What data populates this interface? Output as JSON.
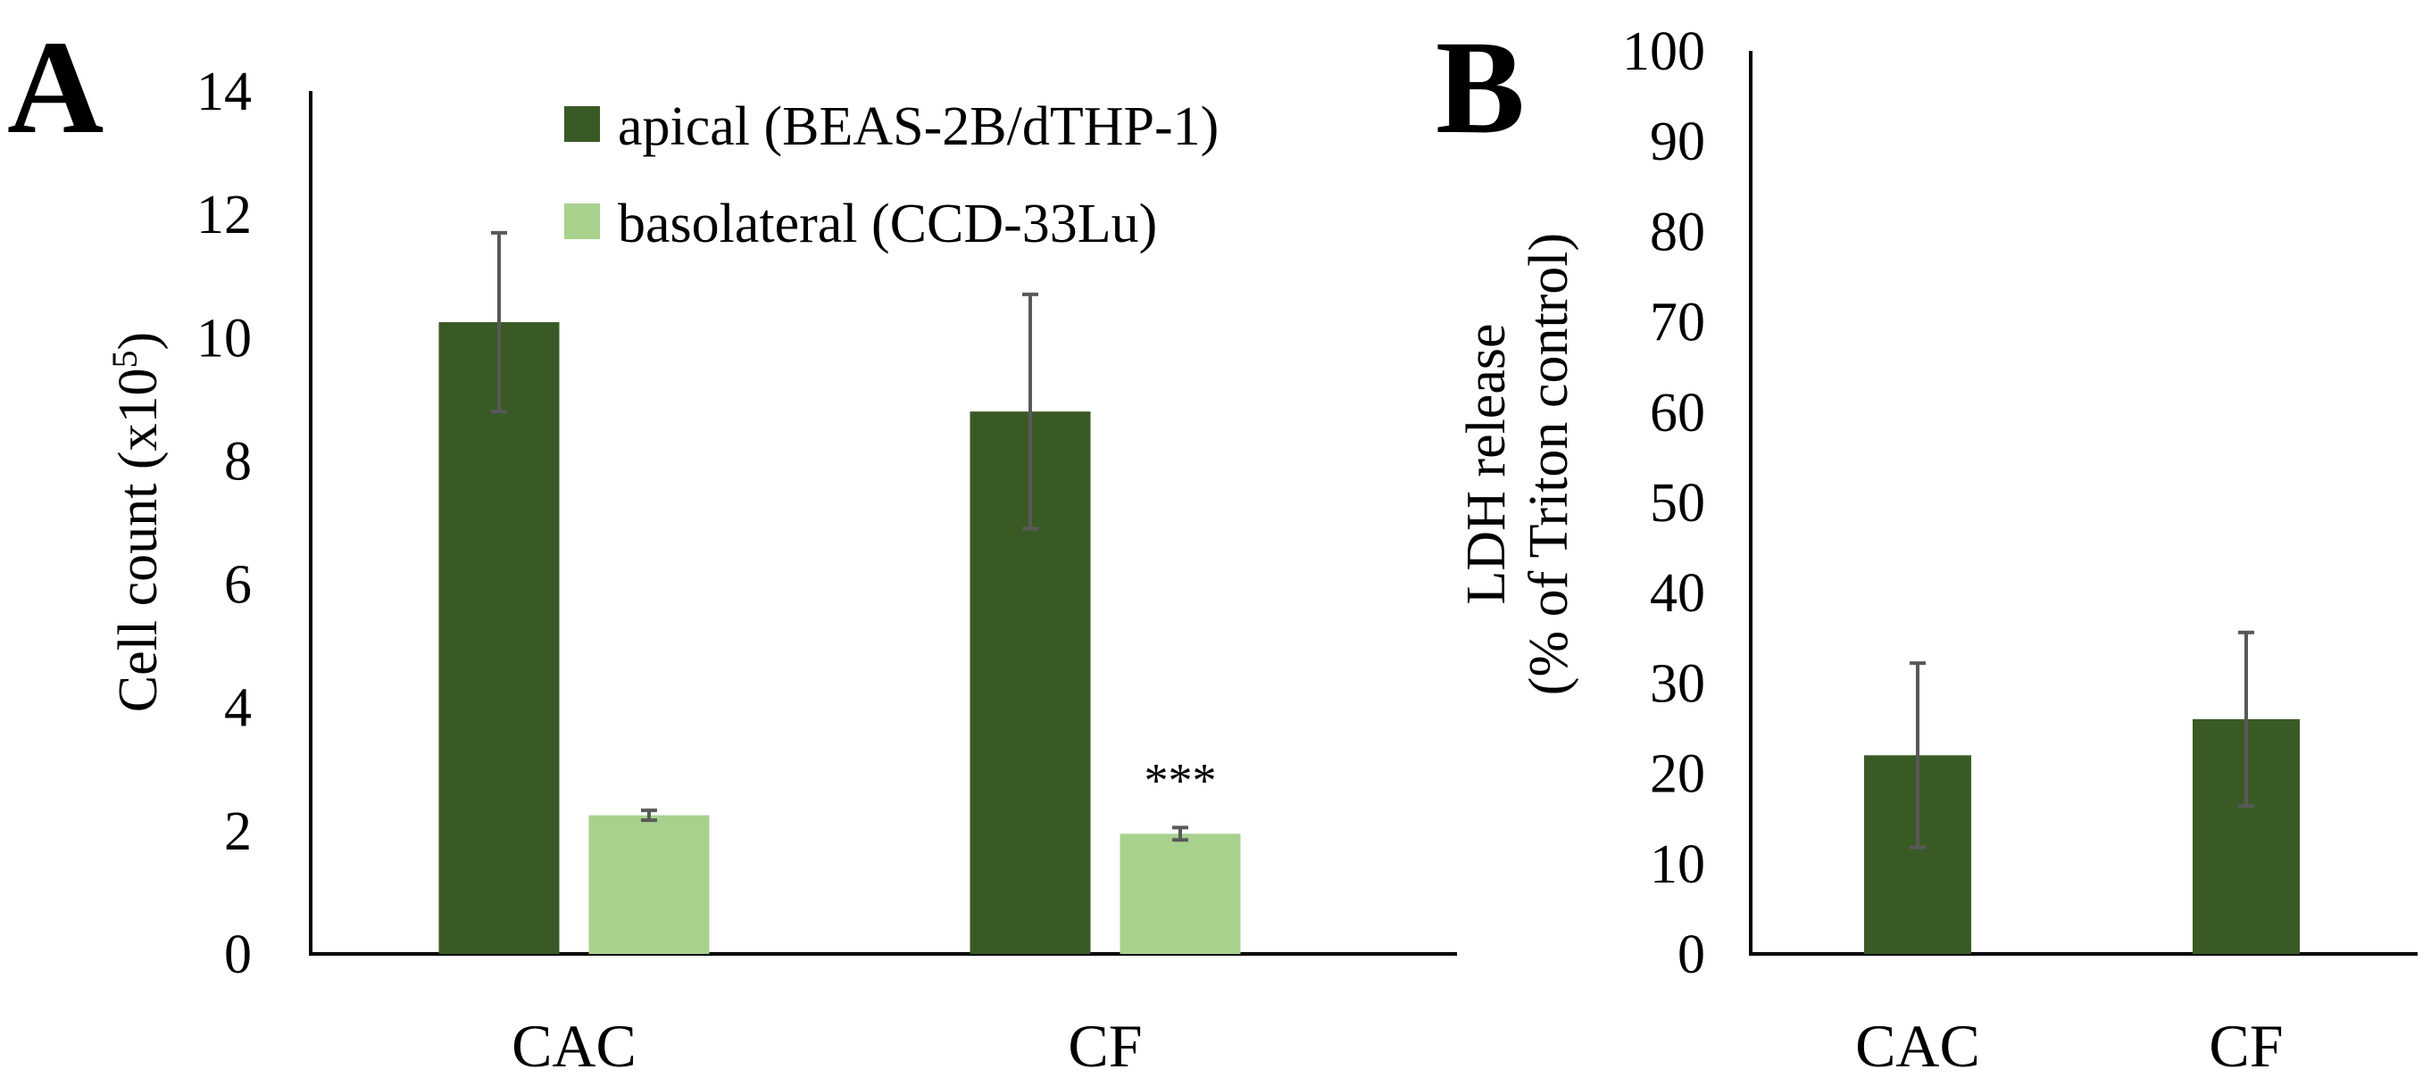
{
  "figure": {
    "panels": [
      "A",
      "B"
    ]
  },
  "chart_data": [
    {
      "panel": "A",
      "type": "bar",
      "title": "",
      "xlabel": "",
      "ylabel": "Cell count (x10",
      "ylabel_sup": "5",
      "ylabel_close": ")",
      "ylim": [
        0,
        14
      ],
      "yticks": [
        0,
        2,
        4,
        6,
        8,
        10,
        12,
        14
      ],
      "categories": [
        "CAC",
        "CF"
      ],
      "legend_position": "top-center",
      "series": [
        {
          "name": "apical (BEAS-2B/dTHP-1)",
          "color": "#3a5a25",
          "values": [
            10.25,
            8.8
          ],
          "errors": [
            1.45,
            1.9
          ]
        },
        {
          "name": "basolateral (CCD-33Lu)",
          "color": "#a8d18d",
          "values": [
            2.25,
            1.95
          ],
          "errors": [
            0.08,
            0.1
          ]
        }
      ],
      "annotations": [
        {
          "category": "CF",
          "series": "basolateral (CCD-33Lu)",
          "text": "***"
        }
      ]
    },
    {
      "panel": "B",
      "type": "bar",
      "title": "",
      "xlabel": "",
      "ylabel_line1": "LDH release",
      "ylabel_line2": "(% of Triton control)",
      "ylim": [
        0,
        100
      ],
      "yticks": [
        0,
        10,
        20,
        30,
        40,
        50,
        60,
        70,
        80,
        90,
        100
      ],
      "categories": [
        "CAC",
        "CF"
      ],
      "series": [
        {
          "name": "LDH release",
          "color": "#3a5a25",
          "values": [
            22,
            26
          ],
          "errors": [
            10.2,
            9.6
          ]
        }
      ]
    }
  ]
}
